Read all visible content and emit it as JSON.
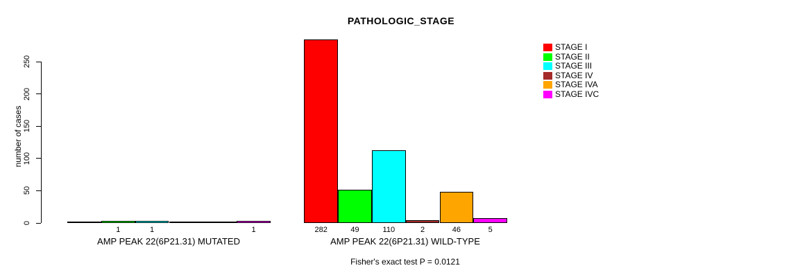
{
  "chart_data": {
    "type": "bar",
    "title": "PATHOLOGIC_STAGE",
    "ylabel": "number of cases",
    "xlabel": "",
    "ylim": [
      0,
      250
    ],
    "yticks": [
      "0",
      "50",
      "100",
      "150",
      "200",
      "250"
    ],
    "grid": false,
    "legend_position": "right",
    "background_color": "#FFFFFF",
    "bar_border_color": "#000000",
    "stages": [
      "STAGE I",
      "STAGE II",
      "STAGE III",
      "STAGE IV",
      "STAGE IVA",
      "STAGE IVC"
    ],
    "legend": [
      {
        "label": "STAGE I",
        "color": "#FF0000"
      },
      {
        "label": "STAGE II",
        "color": "#00FF00"
      },
      {
        "label": "STAGE III",
        "color": "#00FFFF"
      },
      {
        "label": "STAGE IV",
        "color": "#A52A2A"
      },
      {
        "label": "STAGE IVA",
        "color": "#FFA500"
      },
      {
        "label": "STAGE IVC",
        "color": "#FF00FF"
      }
    ],
    "groups": [
      {
        "label": "AMP PEAK 22(6P21.31) MUTATED",
        "values": [
          0,
          1,
          1,
          0,
          0,
          1
        ],
        "bar_labels": [
          "",
          "1",
          "1",
          "",
          "",
          "1"
        ]
      },
      {
        "label": "AMP PEAK 22(6P21.31) WILD-TYPE",
        "values": [
          282,
          49,
          110,
          2,
          46,
          5
        ],
        "bar_labels": [
          "282",
          "49",
          "110",
          "2",
          "46",
          "5"
        ]
      }
    ],
    "annotation": "Fisher's exact test P = 0.0121"
  }
}
